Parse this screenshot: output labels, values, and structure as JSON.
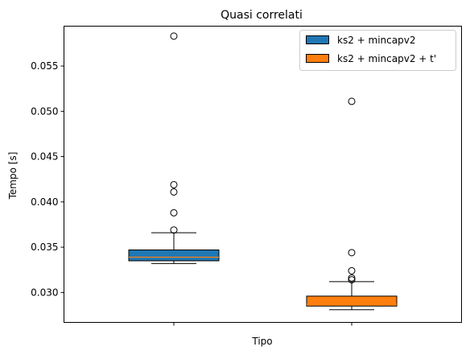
{
  "chart_data": {
    "type": "boxplot",
    "title": "Quasi correlati",
    "xlabel": "Tipo",
    "ylabel": "Tempo [s]",
    "ylim": [
      0.0267,
      0.0594
    ],
    "yticks": [
      0.03,
      0.035,
      0.04,
      0.045,
      0.05,
      0.055
    ],
    "ytick_labels": [
      "0.030",
      "0.035",
      "0.040",
      "0.045",
      "0.050",
      "0.055"
    ],
    "grid": false,
    "legend": "top-right",
    "series": [
      {
        "name": "ks2 + mincapv2",
        "color": "#1f77b4",
        "whisker_low": 0.0332,
        "q1": 0.0335,
        "median": 0.0339,
        "q3": 0.0347,
        "whisker_high": 0.0366,
        "outliers": [
          0.0583,
          0.0419,
          0.0411,
          0.0388,
          0.0369
        ]
      },
      {
        "name": "ks2 + mincapv2 + t'",
        "color": "#ff7f0e",
        "whisker_low": 0.0281,
        "q1": 0.0285,
        "median": 0.0287,
        "q3": 0.0296,
        "whisker_high": 0.0312,
        "outliers": [
          0.0511,
          0.0344,
          0.0324,
          0.0316,
          0.0314
        ]
      }
    ]
  }
}
